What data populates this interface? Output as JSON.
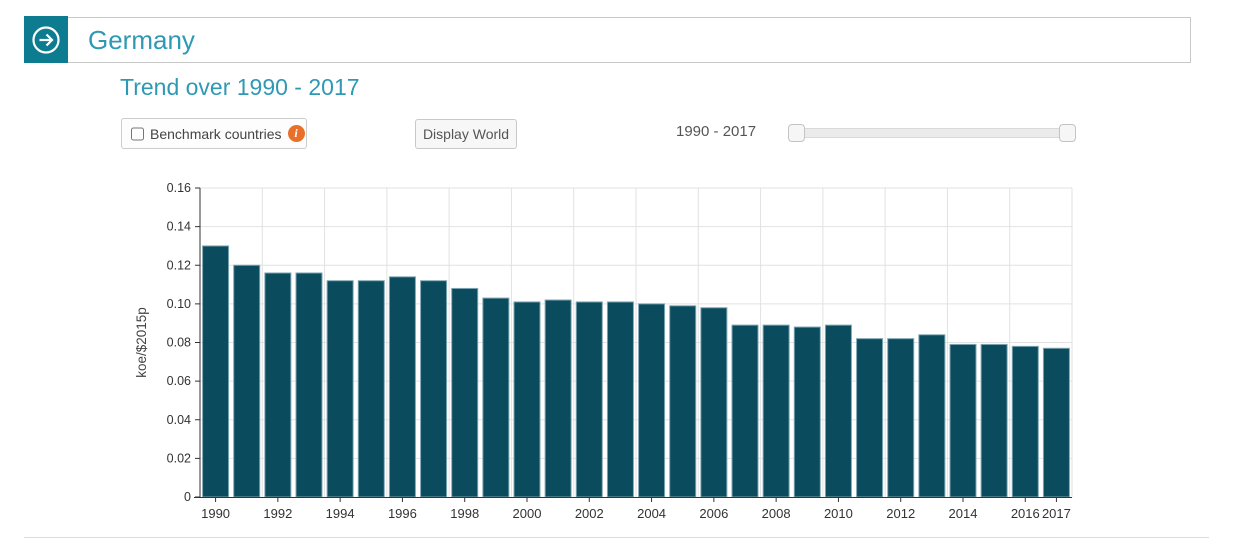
{
  "header": {
    "country": "Germany"
  },
  "section_title": "Trend over 1990 - 2017",
  "controls": {
    "benchmark_label": "Benchmark countries",
    "benchmark_checked": false,
    "info_glyph": "i",
    "display_world_label": "Display World",
    "range_label": "1990 - 2017"
  },
  "colors": {
    "accent_teal": "#0e7c90",
    "title_teal": "#2f99b4",
    "bar_fill": "#0a4b5e",
    "bar_stroke": "#7fa6b4",
    "grid": "#e2e2e2",
    "axis": "#333333",
    "axis_text": "#333333",
    "info_orange": "#e8702a"
  },
  "chart_data": {
    "type": "bar",
    "title": "",
    "xlabel": "",
    "ylabel": "koe/$2015p",
    "categories": [
      1990,
      1991,
      1992,
      1993,
      1994,
      1995,
      1996,
      1997,
      1998,
      1999,
      2000,
      2001,
      2002,
      2003,
      2004,
      2005,
      2006,
      2007,
      2008,
      2009,
      2010,
      2011,
      2012,
      2013,
      2014,
      2015,
      2016,
      2017
    ],
    "values": [
      0.13,
      0.12,
      0.116,
      0.116,
      0.112,
      0.112,
      0.114,
      0.112,
      0.108,
      0.103,
      0.101,
      0.102,
      0.101,
      0.101,
      0.1,
      0.099,
      0.098,
      0.089,
      0.089,
      0.088,
      0.089,
      0.082,
      0.082,
      0.084,
      0.079,
      0.079,
      0.078,
      0.077
    ],
    "ylim": [
      0,
      0.16
    ],
    "ytick_step": 0.02,
    "xticks": [
      "1990",
      "1992",
      "1994",
      "1996",
      "1998",
      "2000",
      "2002",
      "2004",
      "2006",
      "2008",
      "2010",
      "2012",
      "2014",
      "2016",
      "2017"
    ],
    "grid": true,
    "legend": "none"
  }
}
